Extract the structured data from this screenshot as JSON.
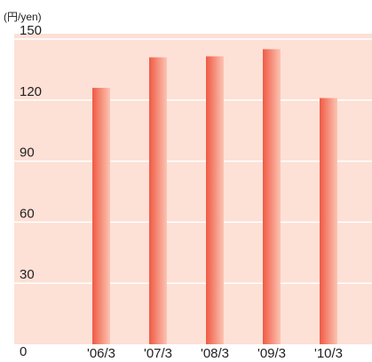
{
  "chart_data": {
    "type": "bar",
    "unit_label": "(円/yen)",
    "categories": [
      "'06/3",
      "'07/3",
      "'08/3",
      "'09/3",
      "'10/3"
    ],
    "values": [
      126,
      141,
      141.5,
      145,
      121
    ],
    "ylim": [
      0,
      150
    ],
    "yticks": [
      "0",
      "30",
      "60",
      "90",
      "120",
      "150"
    ],
    "grid": true,
    "colors": {
      "plot_background": "#fde0d6",
      "gridline": "#ffffff",
      "bar_dark": "#ef5a44",
      "bar_light": "#fcc4b3"
    }
  }
}
